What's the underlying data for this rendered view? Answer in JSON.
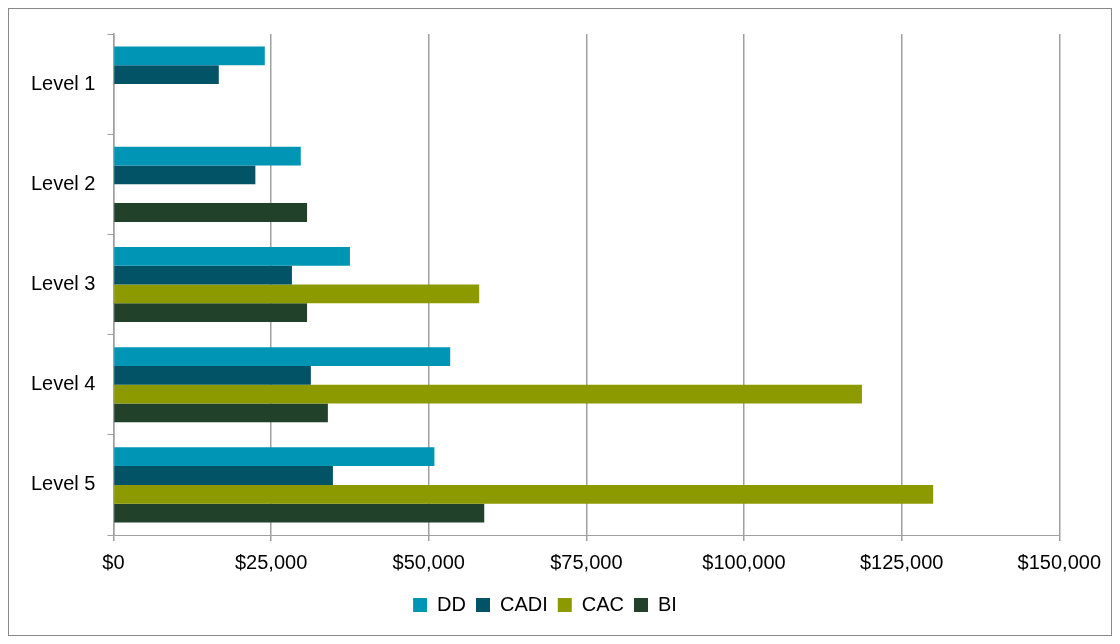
{
  "chart_data": {
    "type": "bar",
    "orientation": "horizontal",
    "categories": [
      "Level 1",
      "Level 2",
      "Level 3",
      "Level 4",
      "Level 5"
    ],
    "series": [
      {
        "name": "DD",
        "color": "#0095b4",
        "values": [
          24000,
          29700,
          37500,
          53400,
          50900
        ]
      },
      {
        "name": "CADI",
        "color": "#025366",
        "values": [
          16700,
          22500,
          28300,
          31300,
          34800
        ]
      },
      {
        "name": "CAC",
        "color": "#8c9a00",
        "values": [
          null,
          null,
          58000,
          118700,
          130000
        ]
      },
      {
        "name": "BI",
        "color": "#21412b",
        "values": [
          null,
          30700,
          30700,
          34000,
          58800
        ]
      }
    ],
    "xlim": [
      0,
      150000
    ],
    "xticks": [
      {
        "value": 0,
        "label": "$0"
      },
      {
        "value": 25000,
        "label": "$25,000"
      },
      {
        "value": 50000,
        "label": "$50,000"
      },
      {
        "value": 75000,
        "label": "$75,000"
      },
      {
        "value": 100000,
        "label": "$100,000"
      },
      {
        "value": 125000,
        "label": "$125,000"
      },
      {
        "value": 150000,
        "label": "$150,000"
      }
    ],
    "grid": "x",
    "legend": "bottom"
  }
}
